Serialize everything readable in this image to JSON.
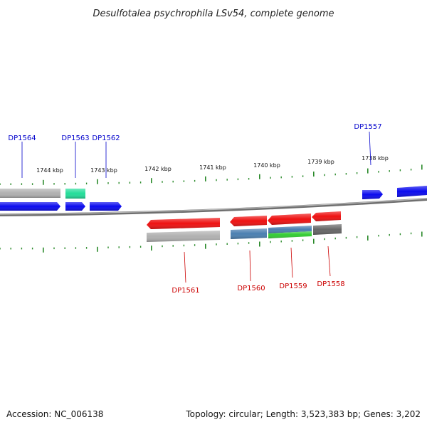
{
  "title": "Desulfotalea psychrophila LSv54, complete genome",
  "footer": {
    "accession": "Accession: NC_006138",
    "summary": "Topology: circular; Length: 3,523,383 bp; Genes: 3,202"
  },
  "colors": {
    "backbone": "#8a8a8a",
    "tick": "#2a8a2a",
    "label_forward": "#0000cc",
    "label_reverse": "#cc0000"
  },
  "scale_ticks": [
    {
      "label": "1744 kbp"
    },
    {
      "label": "1743 kbp"
    },
    {
      "label": "1742 kbp"
    },
    {
      "label": "1741 kbp"
    },
    {
      "label": "1740 kbp"
    },
    {
      "label": "1739 kbp"
    },
    {
      "label": "1738 kbp"
    }
  ],
  "gene_labels": [
    {
      "text": "DP1564",
      "strand": "forward"
    },
    {
      "text": "DP1563",
      "strand": "forward"
    },
    {
      "text": "DP1562",
      "strand": "forward"
    },
    {
      "text": "DP1557",
      "strand": "forward"
    },
    {
      "text": "DP1561",
      "strand": "reverse"
    },
    {
      "text": "DP1560",
      "strand": "reverse"
    },
    {
      "text": "DP1559",
      "strand": "reverse"
    },
    {
      "text": "DP1558",
      "strand": "reverse"
    }
  ],
  "features": [
    {
      "id": "top-left-grey-bar",
      "color": "#b0b0b0"
    },
    {
      "id": "teal-bar",
      "color": "#22dd99"
    },
    {
      "id": "arrow-left-blue",
      "color": "#0a0aee"
    },
    {
      "id": "arrow-dp1563",
      "color": "#0a0aee"
    },
    {
      "id": "arrow-dp1562",
      "color": "#0a0aee"
    },
    {
      "id": "arrow-dp1557a",
      "color": "#0a0aee"
    },
    {
      "id": "arrow-right-blue",
      "color": "#0a0aee"
    },
    {
      "id": "arrow-dp1561",
      "color": "#ee1111"
    },
    {
      "id": "arrow-dp1560",
      "color": "#ee1111"
    },
    {
      "id": "arrow-dp1559",
      "color": "#ee1111"
    },
    {
      "id": "arrow-dp1558",
      "color": "#ee1111"
    },
    {
      "id": "grey-bar-dp1561",
      "color": "#b0b0b0"
    },
    {
      "id": "steelblue-bar-dp1560",
      "color": "#4a7fb0"
    },
    {
      "id": "steelblue-bar-dp1559",
      "color": "#4a7fb0"
    },
    {
      "id": "green-bar-dp1559",
      "color": "#33cc33"
    },
    {
      "id": "darkgrey-bar-dp1558",
      "color": "#666666"
    }
  ]
}
